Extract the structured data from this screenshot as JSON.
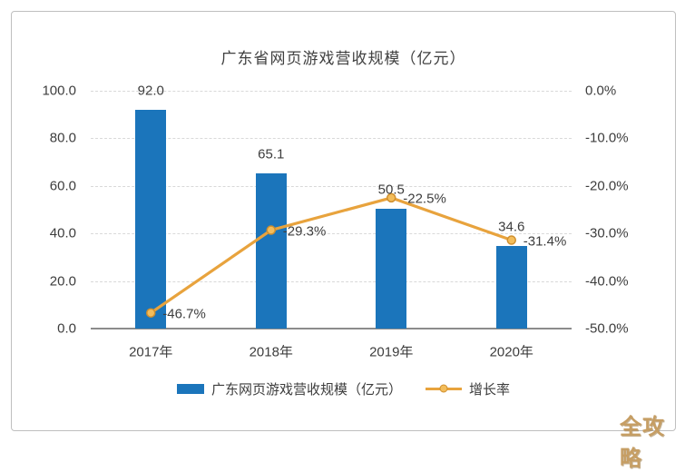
{
  "watermark": "全攻略",
  "colors": {
    "bar": "#1b75bb",
    "line": "#e8a33d",
    "marker_fill": "#f3bd5b",
    "marker_stroke": "#cf8f2e",
    "grid": "#d9d9d9",
    "axis_line": "#8c8c8c",
    "frame_border": "#bfbfbf",
    "text": "#3d3d3d",
    "watermark": "#c69e64"
  },
  "chart_data": {
    "type": "combo-bar-line",
    "title": "广东省网页游戏营收规模（亿元）",
    "categories": [
      "2017年",
      "2018年",
      "2019年",
      "2020年"
    ],
    "series": [
      {
        "name": "广东网页游戏营收规模（亿元）",
        "type": "bar",
        "axis": "left",
        "values": [
          92.0,
          65.1,
          50.5,
          34.6
        ],
        "data_labels": [
          "92.0",
          "65.1",
          "50.5",
          "34.6"
        ]
      },
      {
        "name": "增长率",
        "type": "line",
        "axis": "right",
        "values": [
          -46.7,
          -29.3,
          -22.5,
          -31.4
        ],
        "data_labels": [
          "-46.7%",
          "-29.3%",
          "-22.5%",
          "-31.4%"
        ]
      }
    ],
    "left_axis": {
      "min": 0,
      "max": 100,
      "ticks": [
        "100.0",
        "80.0",
        "60.0",
        "40.0",
        "20.0",
        "0.0"
      ]
    },
    "right_axis": {
      "min": -50,
      "max": 0,
      "ticks": [
        "0.0%",
        "-10.0%",
        "-20.0%",
        "-30.0%",
        "-40.0%",
        "-50.0%"
      ]
    },
    "grid": "horizontal-dashed",
    "legend_position": "bottom"
  }
}
